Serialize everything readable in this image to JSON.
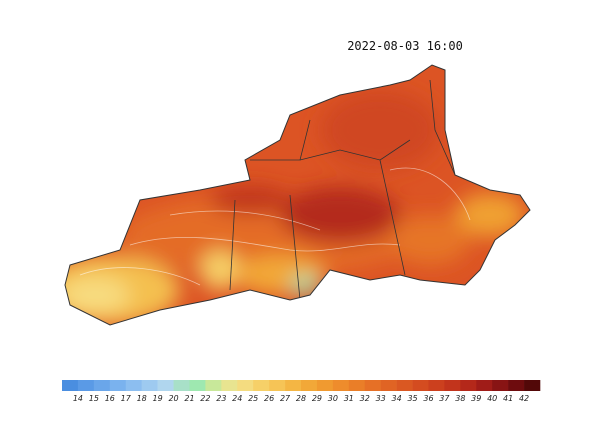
{
  "header": {
    "timestamp": "2022-08-03 16:00"
  },
  "legend": {
    "labels": [
      "14",
      "15",
      "16",
      "17",
      "18",
      "19",
      "20",
      "21",
      "22",
      "23",
      "24",
      "25",
      "26",
      "27",
      "28",
      "29",
      "30",
      "31",
      "32",
      "33",
      "34",
      "35",
      "36",
      "37",
      "38",
      "39",
      "40",
      "41",
      "42"
    ],
    "colors": [
      "#4a8ee0",
      "#5a9ae6",
      "#6aa6ea",
      "#7ab2ee",
      "#8cbef0",
      "#9ecaf0",
      "#b0d6ee",
      "#a8e0c8",
      "#9ee8b0",
      "#c8e89a",
      "#e8e490",
      "#f4dc80",
      "#f6d068",
      "#f6c456",
      "#f4b644",
      "#f2a838",
      "#f09a30",
      "#ee8c2c",
      "#ea7e28",
      "#e67026",
      "#e06424",
      "#da5822",
      "#d44c20",
      "#cc401e",
      "#c2341c",
      "#b4281a",
      "#a01c18",
      "#881414",
      "#6e0c0e",
      "#520808"
    ]
  }
}
